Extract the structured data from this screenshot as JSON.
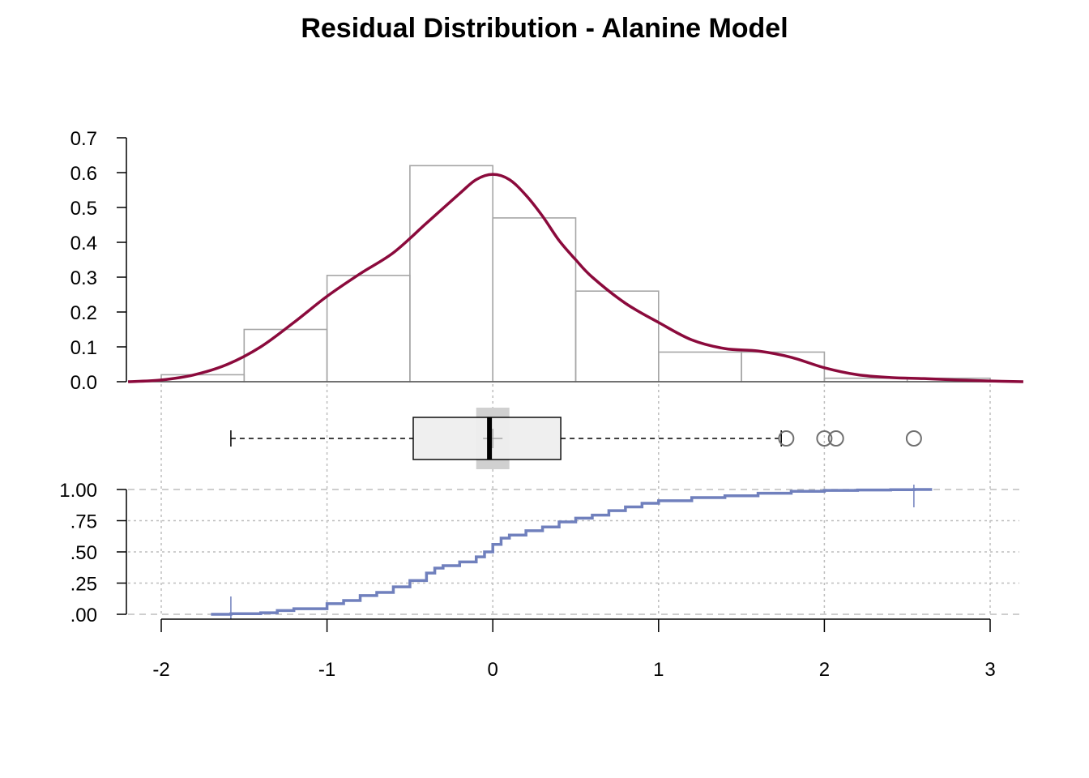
{
  "title": "Residual Distribution - Alanine Model",
  "colors": {
    "density": "#8b0a3c",
    "histogram_border": "#a6a6a6",
    "ecdf": "#7080bd",
    "box_fill": "#efefef",
    "box_notch": "#d0d0d0",
    "outlier": "#707070",
    "grid": "#bdbdbd"
  },
  "chart_data": [
    {
      "type": "histogram",
      "panel": "histogram-with-density",
      "bin_edges": [
        -2,
        -1.5,
        -1,
        -0.5,
        0,
        0.5,
        1,
        1.5,
        2,
        2.5,
        3
      ],
      "values": [
        0.02,
        0.15,
        0.305,
        0.62,
        0.47,
        0.26,
        0.085,
        0.085,
        0.01,
        0.01
      ],
      "density_curve": {
        "x": [
          -2.2,
          -2.0,
          -1.8,
          -1.6,
          -1.4,
          -1.2,
          -1.0,
          -0.8,
          -0.6,
          -0.4,
          -0.2,
          -0.1,
          0.0,
          0.1,
          0.2,
          0.3,
          0.4,
          0.5,
          0.6,
          0.8,
          1.0,
          1.2,
          1.4,
          1.6,
          1.8,
          2.0,
          2.2,
          2.4,
          2.6,
          2.8,
          3.0,
          3.2
        ],
        "y": [
          0.0,
          0.005,
          0.02,
          0.05,
          0.1,
          0.17,
          0.245,
          0.31,
          0.37,
          0.455,
          0.54,
          0.58,
          0.595,
          0.58,
          0.535,
          0.475,
          0.405,
          0.35,
          0.3,
          0.225,
          0.17,
          0.12,
          0.095,
          0.088,
          0.07,
          0.04,
          0.02,
          0.012,
          0.009,
          0.005,
          0.002,
          0.0
        ]
      },
      "ylim": [
        0,
        0.7
      ],
      "y_ticks": [
        "0.0",
        "0.1",
        "0.2",
        "0.3",
        "0.4",
        "0.5",
        "0.6",
        "0.7"
      ],
      "y_tick_values": [
        0,
        0.1,
        0.2,
        0.3,
        0.4,
        0.5,
        0.6,
        0.7
      ]
    },
    {
      "type": "boxplot",
      "panel": "boxplot",
      "whisker_low": -1.58,
      "q1": -0.48,
      "median": -0.02,
      "mean": 0.0,
      "q3": 0.41,
      "whisker_high": 1.74,
      "notch": [
        -0.1,
        0.1
      ],
      "outliers": [
        1.77,
        2.0,
        2.07,
        2.54
      ]
    },
    {
      "type": "line",
      "panel": "ecdf",
      "x": [
        -1.7,
        -1.58,
        -1.4,
        -1.3,
        -1.2,
        -1.0,
        -0.9,
        -0.8,
        -0.7,
        -0.6,
        -0.5,
        -0.4,
        -0.35,
        -0.3,
        -0.2,
        -0.1,
        -0.05,
        0.0,
        0.05,
        0.1,
        0.2,
        0.3,
        0.4,
        0.5,
        0.6,
        0.7,
        0.8,
        0.9,
        1.0,
        1.2,
        1.4,
        1.6,
        1.8,
        2.0,
        2.2,
        2.4,
        2.54,
        2.65
      ],
      "y": [
        0.0,
        0.005,
        0.012,
        0.03,
        0.045,
        0.085,
        0.11,
        0.15,
        0.175,
        0.22,
        0.27,
        0.33,
        0.37,
        0.39,
        0.42,
        0.46,
        0.5,
        0.56,
        0.61,
        0.635,
        0.67,
        0.7,
        0.74,
        0.77,
        0.795,
        0.83,
        0.86,
        0.89,
        0.91,
        0.935,
        0.95,
        0.97,
        0.985,
        0.993,
        0.996,
        0.998,
        1.0,
        1.0
      ],
      "ylim": [
        0,
        1
      ],
      "y_ticks": [
        ".00",
        ".25",
        ".50",
        ".75",
        "1.00"
      ],
      "y_tick_values": [
        0,
        0.25,
        0.5,
        0.75,
        1.0
      ]
    }
  ],
  "x_axis": {
    "ticks": [
      "-2",
      "-1",
      "0",
      "1",
      "2",
      "3"
    ],
    "tick_values": [
      -2,
      -1,
      0,
      1,
      2,
      3
    ]
  }
}
